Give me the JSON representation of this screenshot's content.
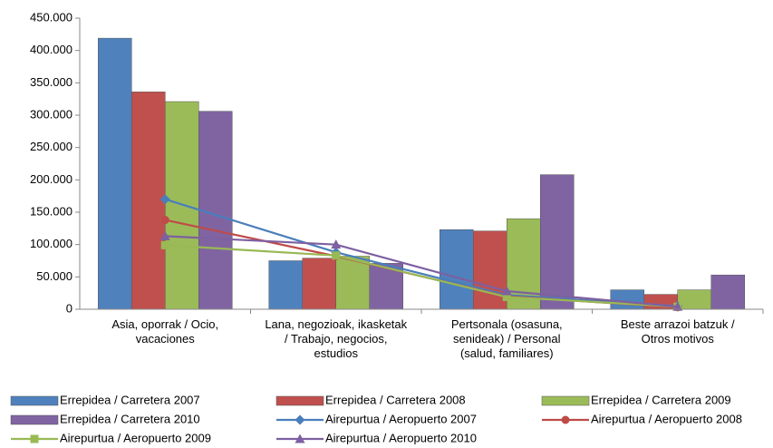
{
  "chart_data": {
    "type": "bar",
    "categories": [
      "Asia, oporrak / Ocio,\nvacaciones",
      "Lana, negozioak, ikasketak\n/ Trabajo, negocios,\nestudios",
      "Pertsonala (osasuna,\nsenideak) / Personal\n(salud, familiares)",
      "Beste arrazoi batzuk /\nOtros motivos"
    ],
    "series": [
      {
        "name": "Errepidea / Carretera 2007",
        "type": "bar",
        "color": "#4f81bd",
        "values": [
          419000,
          75000,
          123000,
          30000
        ]
      },
      {
        "name": "Errepidea / Carretera 2008",
        "type": "bar",
        "color": "#c0504d",
        "values": [
          336000,
          79000,
          121000,
          23000
        ]
      },
      {
        "name": "Errepidea / Carretera 2009",
        "type": "bar",
        "color": "#9bbb59",
        "values": [
          321000,
          82000,
          140000,
          30000
        ]
      },
      {
        "name": "Errepidea / Carretera 2010",
        "type": "bar",
        "color": "#8064a2",
        "values": [
          306000,
          71000,
          208000,
          53000
        ]
      },
      {
        "name": "Airepurtua / Aeropuerto 2007",
        "type": "line",
        "marker": "diamond",
        "color": "#4a7ebb",
        "values": [
          170000,
          88000,
          22000,
          5000
        ]
      },
      {
        "name": "Airepurtua / Aeropuerto 2008",
        "type": "line",
        "marker": "circle",
        "color": "#be4b48",
        "values": [
          138000,
          82000,
          20000,
          3000
        ]
      },
      {
        "name": "Airepurtua / Aeropuerto 2009",
        "type": "line",
        "marker": "square",
        "color": "#98b954",
        "values": [
          99000,
          83000,
          19000,
          4000
        ]
      },
      {
        "name": "Airepurtua / Aeropuerto 2010",
        "type": "line",
        "marker": "triangle",
        "color": "#7d60a0",
        "values": [
          113000,
          100000,
          28000,
          4000
        ]
      }
    ],
    "ylim": [
      0,
      450000
    ],
    "yticks": [
      0,
      {
        "value": 50000,
        "label": "50.000"
      },
      {
        "value": 100000,
        "label": "100.000"
      },
      {
        "value": 150000,
        "label": "150.000"
      },
      {
        "value": 200000,
        "label": "200.000"
      },
      {
        "value": 250000,
        "label": "250.000"
      },
      {
        "value": 300000,
        "label": "300.000"
      },
      {
        "value": 350000,
        "label": "350.000"
      },
      {
        "value": 400000,
        "label": "400.000"
      },
      {
        "value": 450000,
        "label": "450.000"
      }
    ],
    "grid": false
  }
}
